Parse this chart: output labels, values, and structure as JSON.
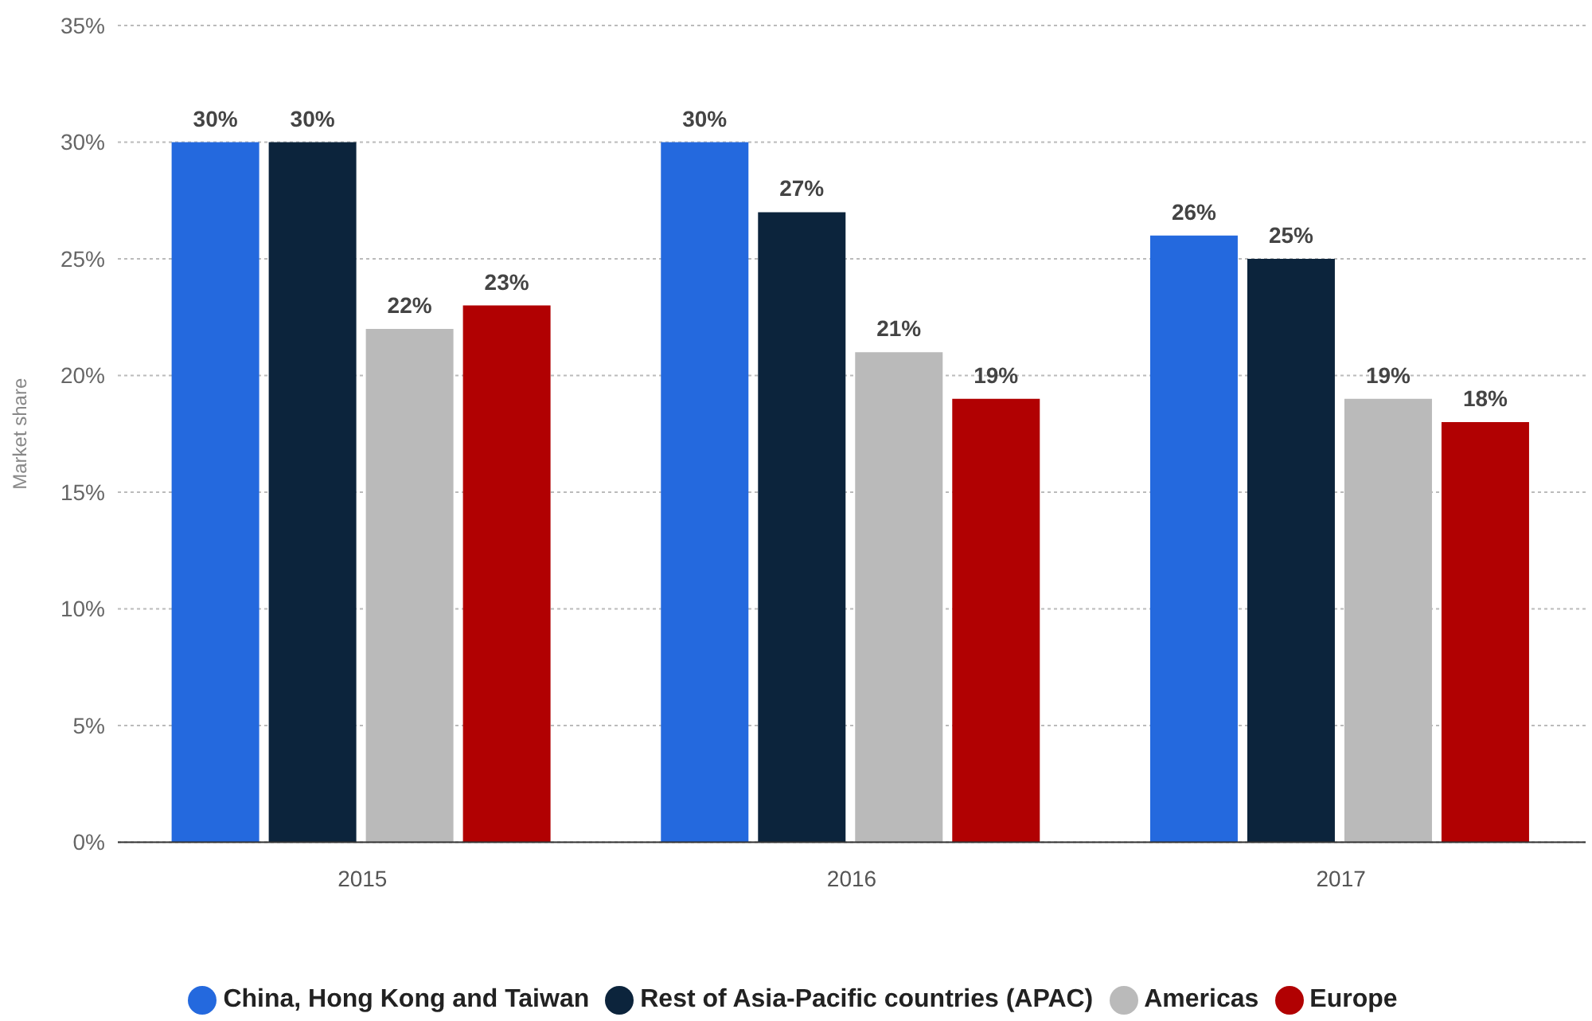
{
  "chart_data": {
    "type": "bar",
    "ylabel": "Market share",
    "categories": [
      "2015",
      "2016",
      "2017"
    ],
    "series": [
      {
        "name": "China, Hong Kong and Taiwan",
        "color": "#2469de",
        "values": [
          30,
          30,
          26
        ],
        "value_labels": [
          "30%",
          "30%",
          "26%"
        ]
      },
      {
        "name": "Rest of Asia-Pacific countries (APAC)",
        "color": "#0c243c",
        "values": [
          30,
          27,
          25
        ],
        "value_labels": [
          "30%",
          "27%",
          "25%"
        ]
      },
      {
        "name": "Americas",
        "color": "#bababa",
        "values": [
          22,
          21,
          19
        ],
        "value_labels": [
          "22%",
          "21%",
          "19%"
        ]
      },
      {
        "name": "Europe",
        "color": "#b10102",
        "values": [
          23,
          19,
          18
        ],
        "value_labels": [
          "23%",
          "19%",
          "18%"
        ]
      }
    ],
    "ylim": [
      0,
      35
    ],
    "yticks": [
      {
        "value": 0,
        "label": "0%"
      },
      {
        "value": 5,
        "label": "5%"
      },
      {
        "value": 10,
        "label": "10%"
      },
      {
        "value": 15,
        "label": "15%"
      },
      {
        "value": 20,
        "label": "20%"
      },
      {
        "value": 25,
        "label": "25%"
      },
      {
        "value": 30,
        "label": "30%"
      },
      {
        "value": 35,
        "label": "35%"
      }
    ],
    "grid": "y",
    "legend": "bottom"
  }
}
